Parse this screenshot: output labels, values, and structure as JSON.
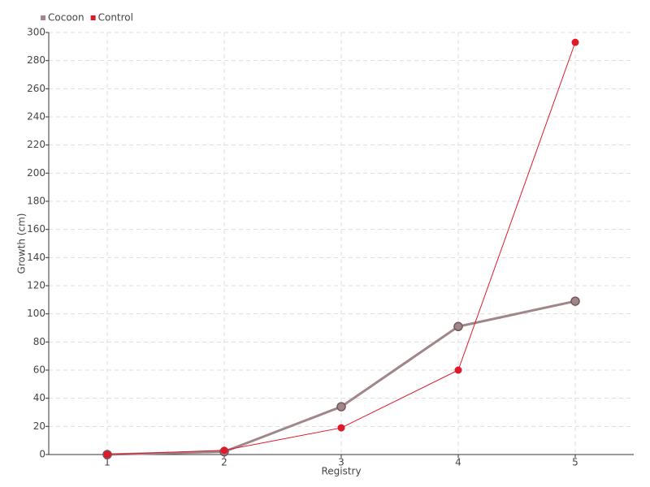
{
  "chart_data": {
    "type": "line",
    "x": [
      1,
      2,
      3,
      4,
      5
    ],
    "xlim": [
      0.5,
      5.5
    ],
    "xticks": [
      1,
      2,
      3,
      4,
      5
    ],
    "ylim": [
      0,
      300
    ],
    "yticks": [
      0,
      20,
      40,
      60,
      80,
      100,
      120,
      140,
      160,
      180,
      200,
      220,
      240,
      260,
      280,
      300
    ],
    "x_label": "Registry",
    "y_label": "Growth (cm)",
    "grid": true,
    "legend": "top-left",
    "series": [
      {
        "name": "Cocoon",
        "color": "#a08589",
        "values": [
          0,
          2,
          34,
          91,
          109
        ]
      },
      {
        "name": "Control",
        "color": "#e0192a",
        "values": [
          0,
          3,
          19,
          60,
          293
        ]
      }
    ]
  }
}
